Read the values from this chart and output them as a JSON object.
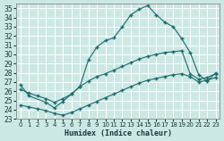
{
  "xlabel": "Humidex (Indice chaleur)",
  "bg_color": "#cce8e4",
  "grid_color": "#b0d8d4",
  "line_color": "#1a6b6b",
  "xlim": [
    -0.5,
    23.5
  ],
  "ylim": [
    23,
    35.5
  ],
  "xticks": [
    0,
    1,
    2,
    3,
    4,
    5,
    6,
    7,
    8,
    9,
    10,
    11,
    12,
    13,
    14,
    15,
    16,
    17,
    18,
    19,
    20,
    21,
    22,
    23
  ],
  "yticks": [
    23,
    24,
    25,
    26,
    27,
    28,
    29,
    30,
    31,
    32,
    33,
    34,
    35
  ],
  "series": [
    {
      "x": [
        0,
        1,
        3,
        4,
        5,
        6,
        7,
        8,
        9,
        10,
        11,
        12,
        13,
        14,
        15,
        16,
        17,
        18,
        19,
        20,
        21,
        22,
        23
      ],
      "y": [
        26.7,
        25.5,
        24.8,
        24.2,
        24.9,
        25.7,
        26.5,
        29.4,
        30.8,
        31.5,
        31.8,
        33.0,
        34.3,
        34.9,
        35.3,
        34.3,
        33.5,
        33.0,
        31.7,
        30.2,
        27.8,
        27.1,
        28.0
      ]
    },
    {
      "x": [
        0,
        1,
        2,
        3,
        4,
        5,
        6,
        7,
        8,
        9,
        10,
        11,
        12,
        13,
        14,
        15,
        16,
        17,
        18,
        19,
        20,
        21,
        22,
        23
      ],
      "y": [
        26.2,
        25.8,
        25.5,
        25.2,
        24.8,
        25.2,
        25.7,
        26.5,
        27.1,
        27.6,
        27.9,
        28.3,
        28.7,
        29.1,
        29.5,
        29.8,
        30.0,
        30.2,
        30.3,
        30.4,
        27.9,
        27.3,
        27.5,
        27.9
      ]
    },
    {
      "x": [
        0,
        1,
        2,
        3,
        4,
        5,
        6,
        7,
        8,
        9,
        10,
        11,
        12,
        13,
        14,
        15,
        16,
        17,
        18,
        19,
        20,
        21,
        22,
        23
      ],
      "y": [
        24.5,
        24.3,
        24.1,
        23.9,
        23.6,
        23.4,
        23.7,
        24.1,
        24.5,
        24.9,
        25.3,
        25.7,
        26.1,
        26.5,
        26.9,
        27.2,
        27.4,
        27.6,
        27.8,
        27.9,
        27.6,
        27.0,
        27.2,
        27.5
      ]
    }
  ]
}
